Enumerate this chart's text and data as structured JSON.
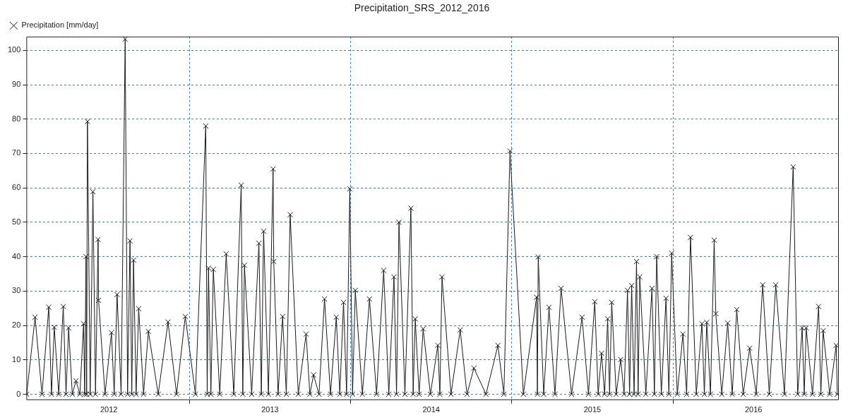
{
  "chart_data": {
    "type": "line",
    "title": "Precipitation_SRS_2012_2016",
    "marker": "cross",
    "line_style": "solid",
    "grid": true,
    "legend": "top left",
    "xlim": [
      2011.988,
      2017.025
    ],
    "xticks": [
      {
        "value": 2012.5,
        "label": "2012"
      },
      {
        "value": 2013,
        "label": null
      },
      {
        "value": 2013.5,
        "label": "2013"
      },
      {
        "value": 2014,
        "label": null
      },
      {
        "value": 2014.5,
        "label": "2014"
      },
      {
        "value": 2015,
        "label": null
      },
      {
        "value": 2015.5,
        "label": "2015"
      },
      {
        "value": 2016,
        "label": null
      },
      {
        "value": 2016.5,
        "label": "2016"
      }
    ],
    "ylim": [
      -1.5,
      104
    ],
    "yticks": [
      0,
      10,
      20,
      30,
      40,
      50,
      60,
      70,
      80,
      90,
      100
    ],
    "series": [
      {
        "name": "Precipitation [mm/day]",
        "color": "#1a1a1a",
        "x": [
          2011.99,
          2012.042,
          2012.085,
          2012.127,
          2012.144,
          2012.161,
          2012.189,
          2012.217,
          2012.234,
          2012.25,
          2012.273,
          2012.296,
          2012.32,
          2012.343,
          2012.35,
          2012.358,
          2012.362,
          2012.367,
          2012.384,
          2012.401,
          2012.417,
          2012.433,
          2012.436,
          2012.476,
          2012.516,
          2012.533,
          2012.551,
          2012.576,
          2012.601,
          2012.616,
          2012.631,
          2012.642,
          2012.653,
          2012.669,
          2012.685,
          2012.715,
          2012.745,
          2012.806,
          2012.867,
          2012.92,
          2012.974,
          2013.037,
          2013.101,
          2013.11,
          2013.118,
          2013.133,
          2013.148,
          2013.188,
          2013.228,
          2013.275,
          2013.321,
          2013.331,
          2013.341,
          2013.386,
          2013.431,
          2013.446,
          2013.46,
          2013.49,
          2013.519,
          2013.523,
          2013.55,
          2013.578,
          2013.601,
          2013.625,
          2013.675,
          2013.724,
          2013.747,
          2013.77,
          2013.804,
          2013.838,
          2013.875,
          2013.911,
          2013.933,
          2013.956,
          2013.975,
          2013.995,
          2014.012,
          2014.029,
          2014.073,
          2014.117,
          2014.161,
          2014.205,
          2014.237,
          2014.269,
          2014.285,
          2014.3,
          2014.337,
          2014.374,
          2014.388,
          2014.401,
          2014.425,
          2014.45,
          2014.495,
          2014.541,
          2014.554,
          2014.567,
          2014.623,
          2014.68,
          2014.722,
          2014.765,
          2014.84,
          2014.914,
          2014.951,
          2014.989,
          2015.072,
          2015.154,
          2015.159,
          2015.164,
          2015.198,
          2015.231,
          2015.268,
          2015.306,
          2015.371,
          2015.436,
          2015.476,
          2015.515,
          2015.536,
          2015.557,
          2015.576,
          2015.595,
          2015.607,
          2015.62,
          2015.648,
          2015.676,
          2015.697,
          2015.718,
          2015.731,
          2015.744,
          2015.759,
          2015.774,
          2015.784,
          2015.794,
          2015.832,
          2015.87,
          2015.885,
          2015.899,
          2015.928,
          2015.957,
          2015.975,
          2015.992,
          2016.027,
          2016.062,
          2016.085,
          2016.109,
          2016.145,
          2016.18,
          2016.195,
          2016.21,
          2016.233,
          2016.256,
          2016.266,
          2016.303,
          2016.34,
          2016.368,
          2016.396,
          2016.436,
          2016.476,
          2016.517,
          2016.557,
          2016.598,
          2016.638,
          2016.692,
          2016.746,
          2016.774,
          2016.802,
          2016.815,
          2016.827,
          2016.866,
          2016.904,
          2016.918,
          2016.932,
          2016.973,
          2017.013,
          2017.02
        ],
        "values": [
          0,
          22.4,
          0,
          25.3,
          0,
          19.5,
          0,
          25.5,
          0,
          19.3,
          0,
          3.9,
          0,
          20.5,
          0,
          40,
          0,
          79.3,
          0,
          58.9,
          0,
          45,
          27.3,
          0,
          17.9,
          0,
          29,
          0,
          103.3,
          0,
          44.6,
          0,
          39,
          0,
          24.9,
          0,
          18.3,
          0,
          21,
          0,
          22.6,
          0,
          78,
          0,
          36.7,
          0,
          36.3,
          0,
          40.8,
          0,
          60.8,
          0,
          37.5,
          0,
          43.9,
          0,
          47.4,
          0,
          65.5,
          38.6,
          0,
          22.6,
          0,
          52.2,
          0,
          17.5,
          0,
          5.6,
          0,
          27.7,
          0,
          22.4,
          0,
          26.7,
          0,
          59.7,
          0,
          30.2,
          0,
          27.7,
          0,
          36,
          0,
          34.1,
          0,
          50,
          0,
          54.1,
          0,
          21.9,
          0,
          19,
          0,
          14.2,
          0,
          34.1,
          0,
          18.7,
          0,
          7.6,
          0,
          14.2,
          0,
          70.7,
          0,
          28.2,
          0,
          39.9,
          0,
          25.3,
          0,
          30.8,
          0,
          22.4,
          0,
          26.9,
          0,
          11.9,
          0,
          21.9,
          0,
          26.7,
          0,
          10.1,
          0,
          30.2,
          0,
          31.6,
          0,
          38.6,
          0,
          34.1,
          0,
          30.8,
          0,
          40,
          0,
          27.9,
          0,
          41,
          0,
          17.5,
          0,
          45.6,
          0,
          20.5,
          0,
          20.9,
          0,
          44.8,
          23.4,
          0,
          20.7,
          0,
          24.6,
          0,
          13.4,
          0,
          31.8,
          0,
          31.8,
          0,
          66.1,
          0,
          19.3,
          0,
          19.3,
          0,
          25.5,
          0,
          18.5,
          0,
          14.2,
          0
        ]
      }
    ]
  }
}
